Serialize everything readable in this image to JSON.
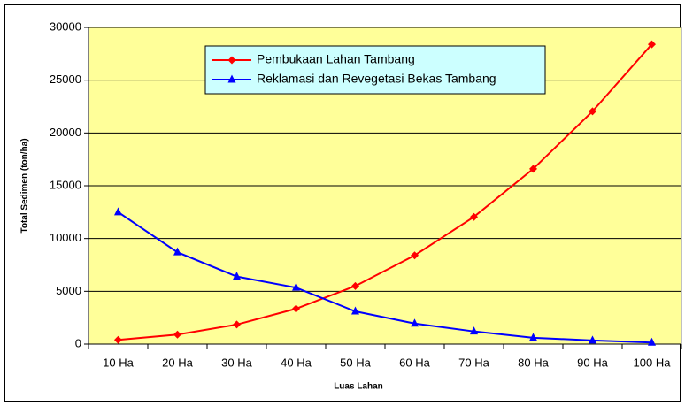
{
  "chart_data": {
    "type": "line",
    "x_label": "Luas Lahan",
    "y_label": "Total Sedimen (ton/ha)",
    "categories": [
      "10 Ha",
      "20 Ha",
      "30 Ha",
      "40 Ha",
      "50 Ha",
      "60 Ha",
      "70 Ha",
      "80 Ha",
      "90 Ha",
      "100 Ha"
    ],
    "series": [
      {
        "name": "Pembukaan Lahan Tambang",
        "color": "#ff0000",
        "marker": "diamond",
        "values": [
          400,
          900,
          1850,
          3350,
          5500,
          8400,
          12050,
          16600,
          22050,
          28400
        ]
      },
      {
        "name": "Reklamasi dan Revegetasi Bekas Tambang",
        "color": "#0000ff",
        "marker": "triangle",
        "values": [
          12500,
          8700,
          6400,
          5350,
          3100,
          1950,
          1200,
          600,
          350,
          150
        ]
      }
    ],
    "ylim": [
      0,
      30000
    ],
    "yticks": [
      0,
      5000,
      10000,
      15000,
      20000,
      25000,
      30000
    ],
    "grid": true,
    "plot_background": "#ffff99",
    "legend": "top"
  }
}
